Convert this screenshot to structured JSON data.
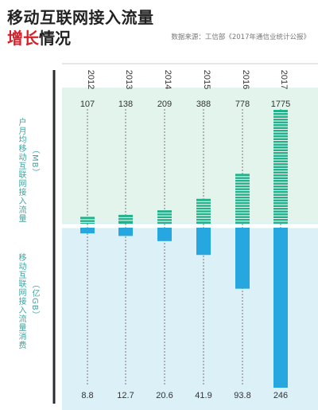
{
  "title": {
    "line1": "移动互联网接入流量",
    "line2_accent": "增长",
    "line2_rest": "情况"
  },
  "source": "数据来源：工信部《2017年通信业统计公报》",
  "upper_label": {
    "name": "户月均移动互联网接入流量",
    "unit": "（MB）"
  },
  "lower_label": {
    "name": "移动互联网接入流量消费",
    "unit": "（亿GB）"
  },
  "colors": {
    "upper_bg": "#e3f4ec",
    "lower_bg": "#dcf0f8",
    "upper_bar": "#22b28a",
    "lower_bar": "#27a7e0",
    "axis": "#2b2b2b"
  },
  "chart_data": [
    {
      "type": "bar",
      "title": "户月均移动互联网接入流量",
      "unit": "MB",
      "categories": [
        "2012",
        "2013",
        "2014",
        "2015",
        "2016",
        "2017"
      ],
      "values": [
        107,
        138,
        209,
        388,
        778,
        1775
      ],
      "value_labels": [
        "107",
        "138",
        "209",
        "388",
        "778",
        "1775"
      ]
    },
    {
      "type": "bar",
      "title": "移动互联网接入流量消费",
      "unit": "亿GB",
      "categories": [
        "2012",
        "2013",
        "2014",
        "2015",
        "2016",
        "2017"
      ],
      "values": [
        8.8,
        12.7,
        20.6,
        41.9,
        93.8,
        246
      ],
      "value_labels": [
        "8.8",
        "12.7",
        "20.6",
        "41.9",
        "93.8",
        "246"
      ]
    }
  ]
}
